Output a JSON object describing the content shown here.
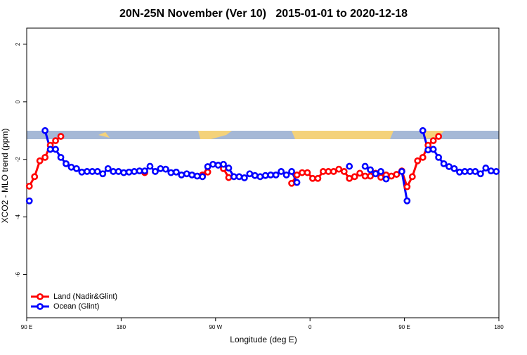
{
  "chart_data": {
    "type": "line",
    "title": "20N-25N November (Ver 10)   2015-01-01 to 2020-12-18",
    "x_label": "Longitude (deg E)",
    "y_label": "XCO2 - MLO trend (ppm)",
    "xlim": [
      90,
      540
    ],
    "ylim": [
      -7.5,
      2.56
    ],
    "xticks": [
      {
        "value": 90,
        "label": "90 E"
      },
      180,
      {
        "value": 270,
        "label": "90 W"
      },
      {
        "value": 360,
        "label": "0"
      },
      {
        "value": 450,
        "label": "90 E"
      },
      {
        "value": 540,
        "label": "180"
      }
    ],
    "yticks": [
      -6,
      -4,
      -2,
      0,
      2
    ],
    "legend": "bottom-left",
    "x": [
      92.5,
      97.5,
      102.5,
      107.5,
      112.5,
      117.5,
      122.5,
      127.5,
      132.5,
      137.5,
      142.5,
      147.5,
      152.5,
      157.5,
      162.5,
      167.5,
      172.5,
      177.5,
      182.5,
      187.5,
      192.5,
      197.5,
      202.5,
      207.5,
      212.5,
      217.5,
      222.5,
      227.5,
      232.5,
      237.5,
      242.5,
      247.5,
      252.5,
      257.5,
      262.5,
      267.5,
      272.5,
      277.5,
      282.5,
      287.5,
      292.5,
      297.5,
      302.5,
      307.5,
      312.5,
      317.5,
      322.5,
      327.5,
      332.5,
      337.5,
      342.5,
      347.5,
      352.5,
      357.5,
      362.5,
      367.5,
      372.5,
      377.5,
      382.5,
      387.5,
      392.5,
      397.5,
      402.5,
      407.5,
      412.5,
      417.5,
      422.5,
      427.5,
      432.5,
      437.5,
      442.5,
      447.5,
      452.5,
      457.5,
      462.5,
      467.5,
      472.5,
      477.5,
      482.5,
      487.5,
      492.5,
      497.5,
      502.5,
      507.5,
      512.5,
      517.5,
      522.5,
      527.5,
      532.5,
      537.5
    ],
    "series": [
      {
        "name": "Land (Nadir&Glint)",
        "color": "#ff0000",
        "values": [
          -2.93,
          -2.6,
          -2.05,
          -1.93,
          -1.51,
          -1.35,
          -1.2,
          null,
          null,
          null,
          null,
          null,
          null,
          null,
          null,
          null,
          null,
          null,
          null,
          null,
          null,
          null,
          -2.46,
          null,
          null,
          null,
          null,
          null,
          null,
          null,
          null,
          null,
          null,
          -2.54,
          -2.44,
          null,
          null,
          -2.32,
          -2.63,
          null,
          null,
          null,
          null,
          null,
          null,
          null,
          null,
          null,
          null,
          null,
          -2.83,
          -2.54,
          -2.46,
          -2.46,
          -2.66,
          -2.66,
          -2.42,
          -2.42,
          -2.42,
          -2.34,
          -2.42,
          -2.66,
          -2.6,
          -2.48,
          -2.58,
          -2.58,
          -2.48,
          -2.62,
          -2.54,
          -2.58,
          -2.52,
          -2.4,
          -2.95,
          -2.6,
          -2.05,
          -1.93,
          -1.51,
          -1.35,
          -1.2,
          null,
          null,
          null,
          null,
          null,
          null,
          null,
          null,
          null,
          null,
          null
        ]
      },
      {
        "name": "Ocean (Glint)",
        "color": "#0000ff",
        "values": [
          -3.44,
          null,
          null,
          -1.0,
          -1.65,
          -1.65,
          -1.93,
          -2.15,
          -2.27,
          -2.32,
          -2.44,
          -2.42,
          -2.42,
          -2.42,
          -2.5,
          -2.32,
          -2.42,
          -2.42,
          -2.46,
          -2.44,
          -2.42,
          -2.4,
          -2.4,
          -2.24,
          -2.42,
          -2.32,
          -2.34,
          -2.46,
          -2.44,
          -2.54,
          -2.5,
          -2.54,
          -2.58,
          -2.6,
          -2.25,
          -2.17,
          -2.2,
          -2.17,
          -2.3,
          -2.6,
          -2.6,
          -2.64,
          -2.5,
          -2.56,
          -2.6,
          -2.56,
          -2.54,
          -2.54,
          -2.42,
          -2.54,
          -2.42,
          -2.8,
          null,
          null,
          null,
          null,
          null,
          null,
          null,
          null,
          null,
          -2.24,
          null,
          null,
          -2.24,
          -2.36,
          -2.5,
          -2.42,
          -2.68,
          null,
          null,
          -2.42,
          -3.44,
          null,
          null,
          -1.0,
          -1.67,
          -1.65,
          -1.93,
          -2.15,
          -2.25,
          -2.32,
          -2.44,
          -2.42,
          -2.42,
          -2.42,
          -2.5,
          -2.3,
          -2.4,
          -2.42
        ]
      }
    ]
  }
}
